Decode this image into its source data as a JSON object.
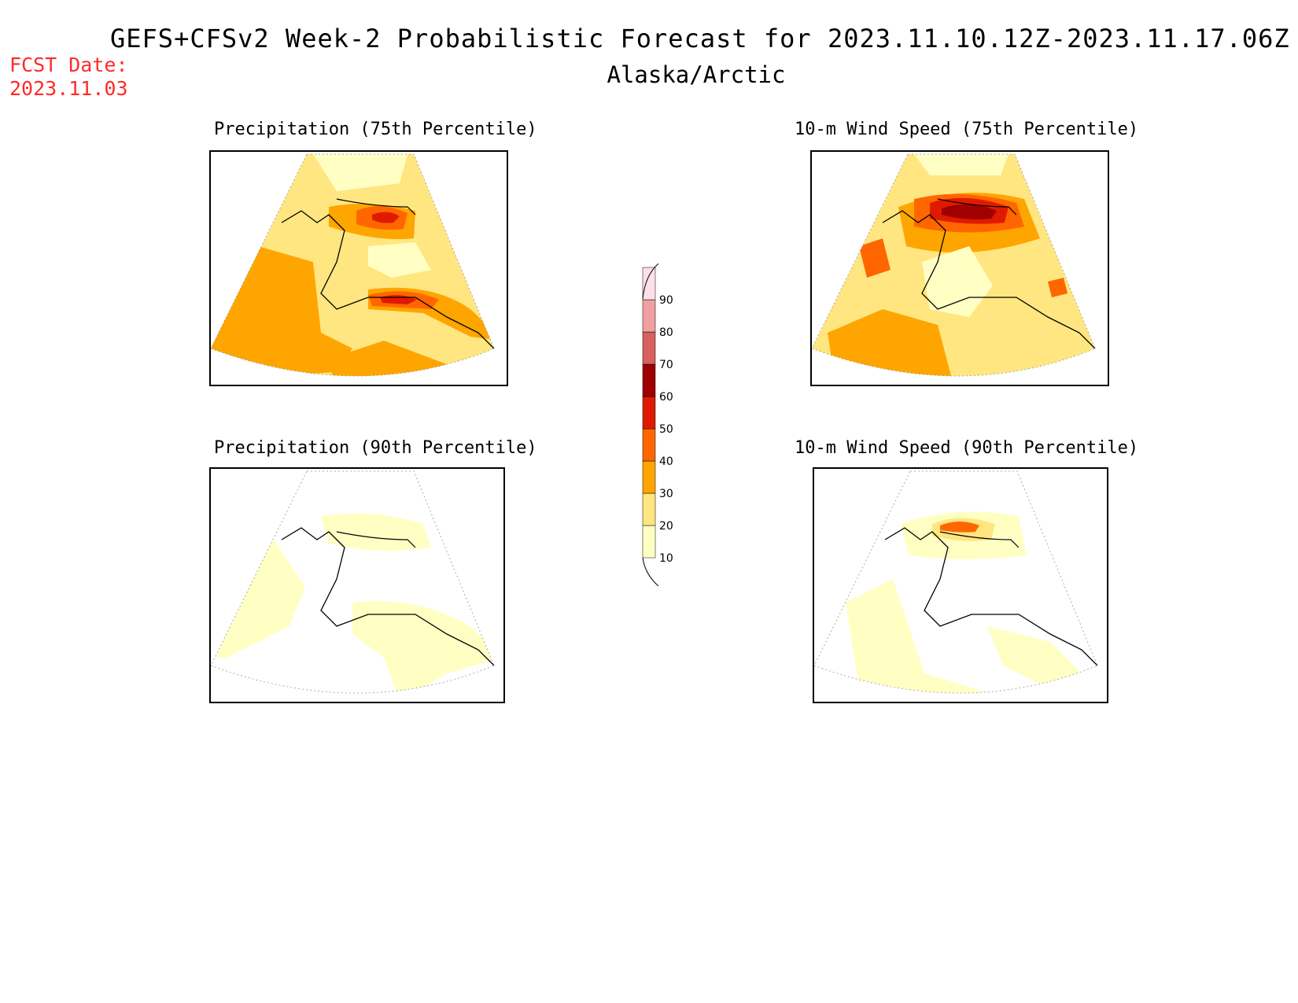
{
  "header": {
    "title": "GEFS+CFSv2 Week-2 Probabilistic Forecast for 2023.11.10.12Z-2023.11.17.06Z",
    "subtitle": "Alaska/Arctic",
    "fcst_label": "FCST Date:",
    "fcst_date": "2023.11.03"
  },
  "panels": [
    {
      "id": "precip75",
      "title": "Precipitation (75th Percentile)"
    },
    {
      "id": "wind75",
      "title": "10-m Wind Speed (75th Percentile)"
    },
    {
      "id": "precip90",
      "title": "Precipitation (90th Percentile)"
    },
    {
      "id": "wind90",
      "title": "10-m Wind Speed (90th Percentile)"
    }
  ],
  "colorbar": {
    "levels": [
      "10",
      "20",
      "30",
      "40",
      "50",
      "60",
      "70",
      "80",
      "90"
    ],
    "colors": [
      "#ffffc4",
      "#ffe680",
      "#ffa500",
      "#ff6600",
      "#e01a00",
      "#a00000",
      "#d86060",
      "#f0a0a0",
      "#ffe0e8"
    ]
  },
  "palette": {
    "c10": "#ffffc4",
    "c20": "#ffe680",
    "c30": "#ffa500",
    "c40": "#ff6600",
    "c50": "#e01a00",
    "c60": "#a00000"
  }
}
